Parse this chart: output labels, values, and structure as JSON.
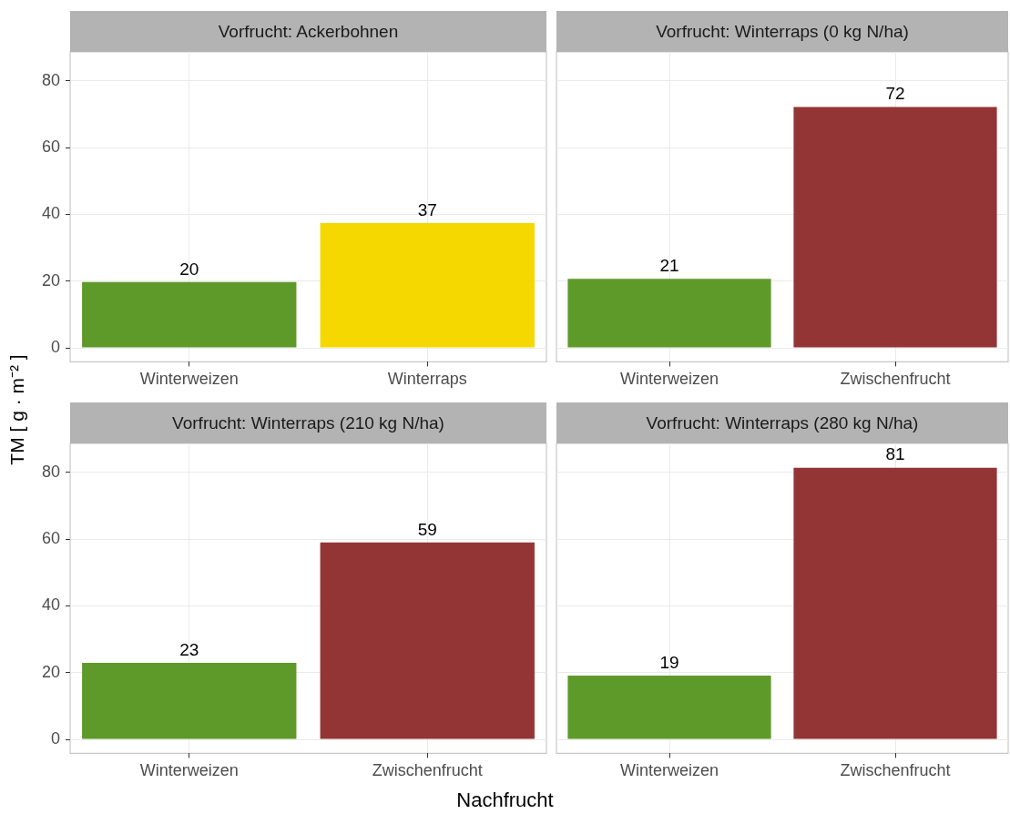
{
  "chart_data": [
    {
      "type": "bar",
      "title": "Vorfrucht: Ackerbohnen",
      "ylabel": "TM [ g · m⁻² ]",
      "categories": [
        "Winterweizen",
        "Winterraps"
      ],
      "values": [
        19.7,
        37.4
      ],
      "value_labels": [
        "20",
        "37"
      ],
      "colors": [
        "#5e9a2a",
        "#f5d800"
      ],
      "ylim": [
        -4.2,
        88.7
      ],
      "yticks": [
        0,
        20,
        40,
        60,
        80
      ],
      "grid": true
    },
    {
      "type": "bar",
      "title": "Vorfrucht: Winterraps (0 kg N/ha)",
      "categories": [
        "Winterweizen",
        "Zwischenfrucht"
      ],
      "values": [
        20.7,
        72.2
      ],
      "value_labels": [
        "21",
        "72"
      ],
      "colors": [
        "#5e9a2a",
        "#943535"
      ],
      "ylim": [
        -4.2,
        88.7
      ],
      "yticks": [
        0,
        20,
        40,
        60,
        80
      ],
      "grid": true,
      "tick_labels": "x"
    },
    {
      "type": "bar",
      "title": "Vorfrucht: Winterraps (210 kg N/ha)",
      "xlabel": "Nachfrucht",
      "categories": [
        "Winterweizen",
        "Zwischenfrucht"
      ],
      "values": [
        22.9,
        59.0
      ],
      "value_labels": [
        "23",
        "59"
      ],
      "colors": [
        "#5e9a2a",
        "#943535"
      ],
      "ylim": [
        -4.2,
        88.7
      ],
      "yticks": [
        0,
        20,
        40,
        60,
        80
      ],
      "grid": true
    },
    {
      "type": "bar",
      "title": "Vorfrucht: Winterraps (280 kg N/ha)",
      "categories": [
        "Winterweizen",
        "Zwischenfrucht"
      ],
      "values": [
        19.1,
        81.4
      ],
      "value_labels": [
        "19",
        "81"
      ],
      "colors": [
        "#5e9a2a",
        "#943535"
      ],
      "ylim": [
        -4.2,
        88.7
      ],
      "yticks": [
        0,
        20,
        40,
        60,
        80
      ],
      "grid": true,
      "tick_labels": "x"
    }
  ]
}
